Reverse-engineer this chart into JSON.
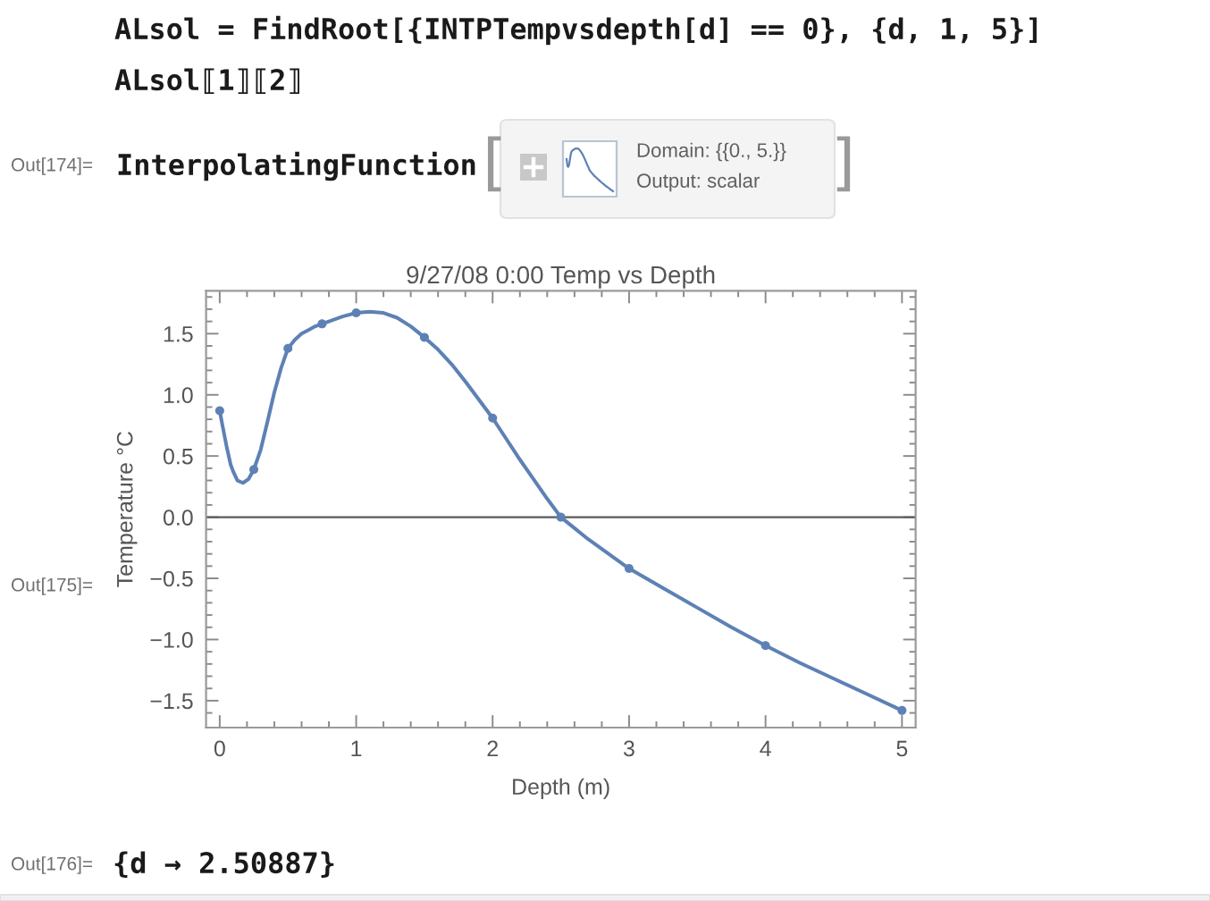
{
  "chart_data": {
    "type": "line",
    "title": "9/27/08 0:00 Temp vs Depth",
    "xlabel": "Depth (m)",
    "ylabel": "Temperature °C",
    "series": [
      {
        "type": "line",
        "color": "#5e81b5",
        "marker": "none",
        "x": [
          0,
          0.02,
          0.05,
          0.08,
          0.1,
          0.13,
          0.17,
          0.21,
          0.25,
          0.3,
          0.35,
          0.4,
          0.45,
          0.5,
          0.55,
          0.6,
          0.65,
          0.7,
          0.75,
          0.8,
          0.85,
          0.9,
          1.0,
          1.1,
          1.2,
          1.3,
          1.4,
          1.5,
          1.6,
          1.7,
          1.8,
          1.9,
          2.0,
          2.1,
          2.2,
          2.3,
          2.4,
          2.5,
          2.6,
          2.7,
          2.8,
          2.9,
          3.0,
          3.25,
          3.5,
          3.75,
          4.0,
          4.25,
          4.5,
          4.75,
          5.0
        ],
        "values": [
          0.87,
          0.75,
          0.58,
          0.43,
          0.37,
          0.3,
          0.28,
          0.31,
          0.39,
          0.55,
          0.78,
          1.02,
          1.22,
          1.38,
          1.45,
          1.5,
          1.53,
          1.56,
          1.58,
          1.6,
          1.62,
          1.64,
          1.67,
          1.68,
          1.67,
          1.63,
          1.56,
          1.47,
          1.37,
          1.25,
          1.11,
          0.96,
          0.81,
          0.64,
          0.47,
          0.31,
          0.15,
          0.0,
          -0.09,
          -0.18,
          -0.26,
          -0.34,
          -0.42,
          -0.58,
          -0.74,
          -0.9,
          -1.05,
          -1.19,
          -1.32,
          -1.45,
          -1.58
        ]
      },
      {
        "type": "scatter",
        "color": "#5e81b5",
        "marker": "circle",
        "x": [
          0,
          0.25,
          0.5,
          0.75,
          1,
          1.5,
          2,
          2.5,
          3,
          4,
          5
        ],
        "values": [
          0.87,
          0.39,
          1.38,
          1.58,
          1.67,
          1.47,
          0.81,
          0.0,
          -0.42,
          -1.05,
          -1.58
        ]
      }
    ],
    "xlim": [
      -0.1,
      5.1
    ],
    "ylim": [
      -1.72,
      1.85
    ],
    "xticks": [
      0,
      {
        "value": 0.2,
        "label": null
      },
      {
        "value": 0.4,
        "label": null
      },
      {
        "value": 0.6,
        "label": null
      },
      {
        "value": 0.8,
        "label": null
      },
      1,
      {
        "value": 1.2,
        "label": null
      },
      {
        "value": 1.4,
        "label": null
      },
      {
        "value": 1.6,
        "label": null
      },
      {
        "value": 1.8,
        "label": null
      },
      2,
      {
        "value": 2.2,
        "label": null
      },
      {
        "value": 2.4,
        "label": null
      },
      {
        "value": 2.6,
        "label": null
      },
      {
        "value": 2.8,
        "label": null
      },
      3,
      {
        "value": 3.2,
        "label": null
      },
      {
        "value": 3.4,
        "label": null
      },
      {
        "value": 3.6,
        "label": null
      },
      {
        "value": 3.8,
        "label": null
      },
      4,
      {
        "value": 4.2,
        "label": null
      },
      {
        "value": 4.4,
        "label": null
      },
      {
        "value": 4.6,
        "label": null
      },
      {
        "value": 4.8,
        "label": null
      },
      5
    ],
    "yticks": [
      {
        "value": -1.6,
        "label": null
      },
      {
        "value": -1.5,
        "label": "−1.5"
      },
      {
        "value": -1.4,
        "label": null
      },
      {
        "value": -1.3,
        "label": null
      },
      {
        "value": -1.2,
        "label": null
      },
      {
        "value": -1.1,
        "label": null
      },
      {
        "value": -1.0,
        "label": "−1.0"
      },
      {
        "value": -0.9,
        "label": null
      },
      {
        "value": -0.8,
        "label": null
      },
      {
        "value": -0.7,
        "label": null
      },
      {
        "value": -0.6,
        "label": null
      },
      {
        "value": -0.5,
        "label": "−0.5"
      },
      {
        "value": -0.4,
        "label": null
      },
      {
        "value": -0.3,
        "label": null
      },
      {
        "value": -0.2,
        "label": null
      },
      {
        "value": -0.1,
        "label": null
      },
      {
        "value": 0,
        "label": "0.0"
      },
      {
        "value": 0.1,
        "label": null
      },
      {
        "value": 0.2,
        "label": null
      },
      {
        "value": 0.3,
        "label": null
      },
      {
        "value": 0.4,
        "label": null
      },
      {
        "value": 0.5,
        "label": "0.5"
      },
      {
        "value": 0.6,
        "label": null
      },
      {
        "value": 0.7,
        "label": null
      },
      {
        "value": 0.8,
        "label": null
      },
      {
        "value": 0.9,
        "label": null
      },
      {
        "value": 1.0,
        "label": "1.0"
      },
      {
        "value": 1.1,
        "label": null
      },
      {
        "value": 1.2,
        "label": null
      },
      {
        "value": 1.3,
        "label": null
      },
      {
        "value": 1.4,
        "label": null
      },
      {
        "value": 1.5,
        "label": "1.5"
      },
      {
        "value": 1.6,
        "label": null
      },
      {
        "value": 1.7,
        "label": null
      },
      {
        "value": 1.8,
        "label": null
      }
    ],
    "ref_lines": [
      {
        "axis": "y",
        "value": 0,
        "color": "#5a5a5a"
      }
    ],
    "annotations": [
      "ALsol = FindRoot[{INTPTempvsdepth[d] == 0}, {d, 1, 5}]",
      "ALsol⟦1⟧⟦2⟧",
      "Out[174]=",
      "InterpolatingFunction",
      "[",
      "Domain: {{0., 5.}}",
      "Output: scalar",
      "]",
      "Out[175]=",
      "Out[176]=",
      "{d → 2.50887}"
    ]
  }
}
